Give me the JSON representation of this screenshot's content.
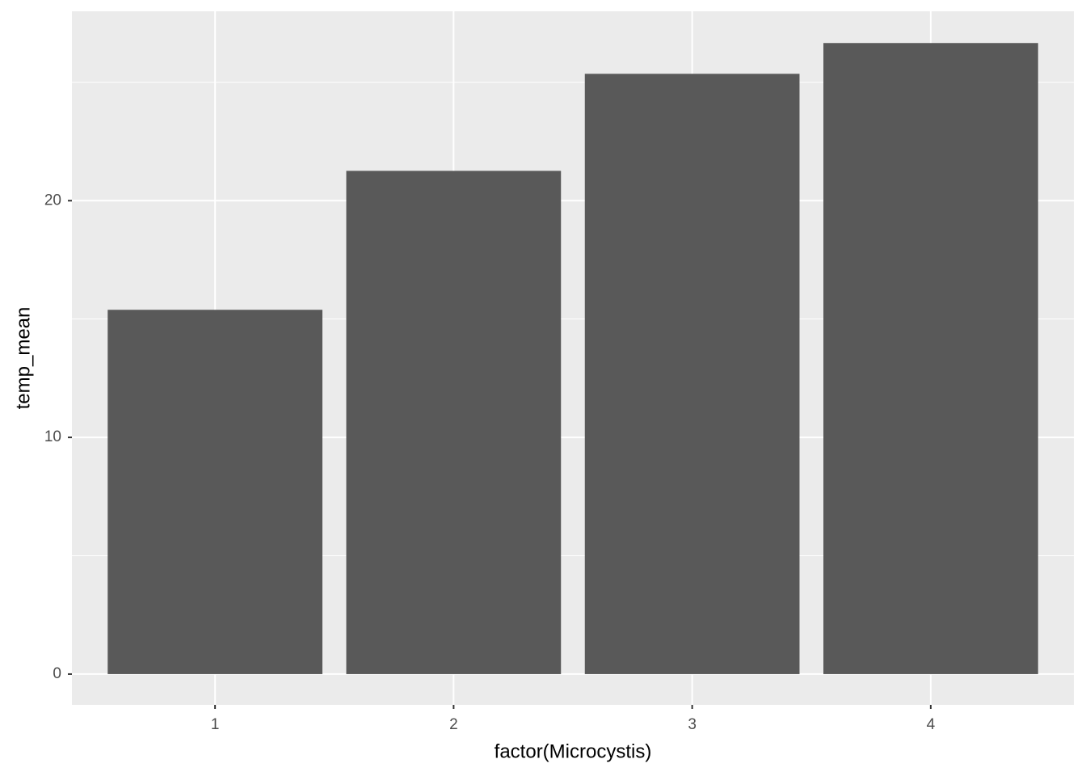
{
  "chart_data": {
    "type": "bar",
    "x_label": "factor(Microcystis)",
    "y_label": "temp_mean",
    "categories": [
      "1",
      "2",
      "3",
      "4"
    ],
    "values": [
      15.39,
      21.26,
      25.36,
      26.66
    ],
    "color": "#595959",
    "ylim": [
      -1.3,
      28.0
    ],
    "yticks": [
      0,
      10,
      20
    ],
    "minor_yticks": [
      5,
      15,
      25
    ],
    "grid": true
  }
}
